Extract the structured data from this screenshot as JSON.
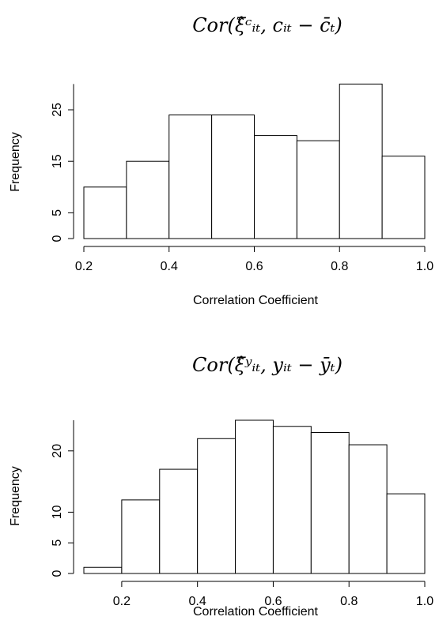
{
  "chart_data": [
    {
      "type": "bar",
      "title": "Cor(ξ̂ᶜᵢₜ, cᵢₜ − c̄ₜ)",
      "xlabel": "Correlation Coefficient",
      "ylabel": "Frequency",
      "bins": [
        [
          0.2,
          0.3
        ],
        [
          0.3,
          0.4
        ],
        [
          0.4,
          0.5
        ],
        [
          0.5,
          0.6
        ],
        [
          0.6,
          0.7
        ],
        [
          0.7,
          0.8
        ],
        [
          0.8,
          0.9
        ],
        [
          0.9,
          1.0
        ]
      ],
      "values": [
        10,
        15,
        24,
        24,
        20,
        19,
        30,
        16
      ],
      "xlim": [
        0.2,
        1.0
      ],
      "ylim": [
        0,
        30
      ],
      "xticks": [
        "0.2",
        "0.4",
        "0.6",
        "0.8",
        "1.0"
      ],
      "xtick_values": [
        0.2,
        0.4,
        0.6,
        0.8,
        1.0
      ],
      "yticks": [
        "0",
        "5",
        "15",
        "25"
      ],
      "ytick_values": [
        0,
        5,
        15,
        25
      ],
      "grid": false
    },
    {
      "type": "bar",
      "title": "Cor(ξ̂ʸᵢₜ, yᵢₜ − ȳₜ)",
      "xlabel": "Correlation Coefficient",
      "ylabel": "Frequency",
      "bins": [
        [
          0.1,
          0.2
        ],
        [
          0.2,
          0.3
        ],
        [
          0.3,
          0.4
        ],
        [
          0.4,
          0.5
        ],
        [
          0.5,
          0.6
        ],
        [
          0.6,
          0.7
        ],
        [
          0.7,
          0.8
        ],
        [
          0.8,
          0.9
        ],
        [
          0.9,
          1.0
        ]
      ],
      "values": [
        1,
        12,
        17,
        22,
        25,
        24,
        23,
        21,
        13
      ],
      "xlim": [
        0.1,
        1.0
      ],
      "ylim": [
        0,
        25
      ],
      "xticks": [
        "0.2",
        "0.4",
        "0.6",
        "0.8",
        "1.0"
      ],
      "xtick_values": [
        0.2,
        0.4,
        0.6,
        0.8,
        1.0
      ],
      "yticks": [
        "0",
        "5",
        "10",
        "20"
      ],
      "ytick_values": [
        0,
        5,
        10,
        20
      ],
      "grid": false
    }
  ]
}
